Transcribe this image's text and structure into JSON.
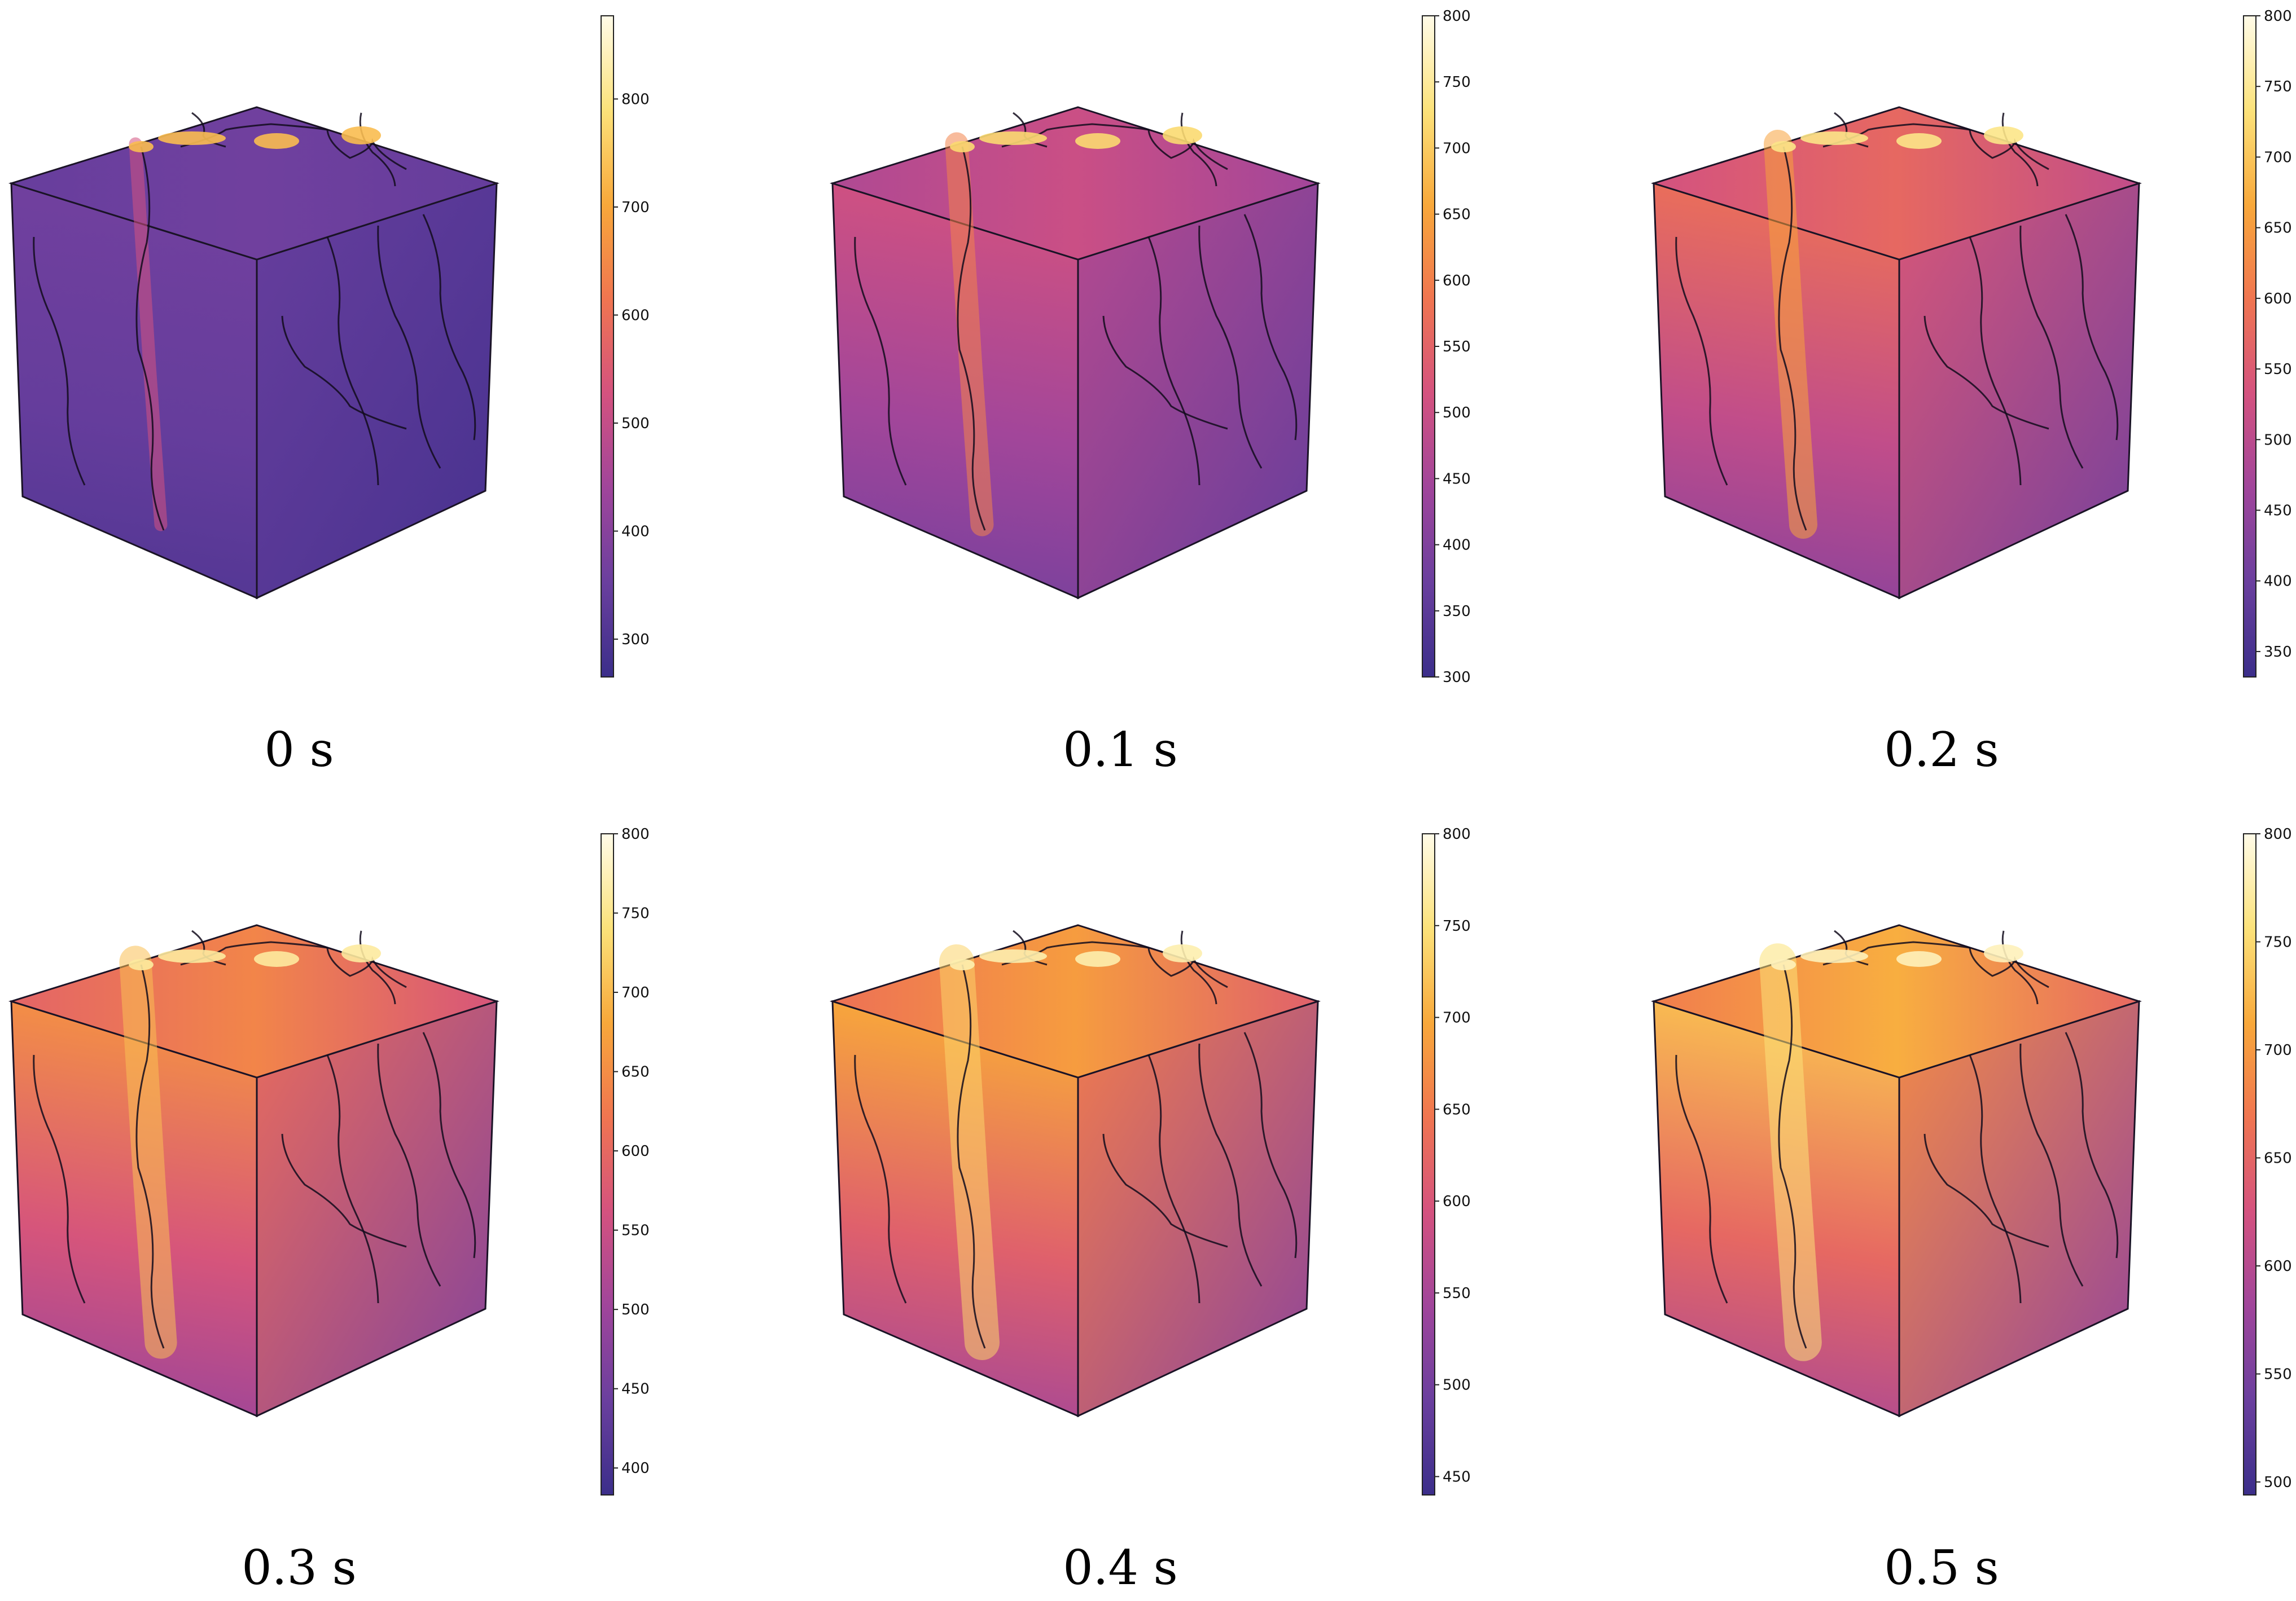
{
  "panels": [
    {
      "time_label": "0 s",
      "colorbar_ticks": [
        300,
        400,
        500,
        600,
        700,
        800
      ],
      "colorbar_range": [
        265,
        877
      ],
      "intensity": 0.05
    },
    {
      "time_label": "0.1 s",
      "colorbar_ticks": [
        300,
        350,
        400,
        450,
        500,
        550,
        600,
        650,
        700,
        750,
        800
      ],
      "colorbar_range": [
        300,
        800
      ],
      "intensity": 0.35
    },
    {
      "time_label": "0.2 s",
      "colorbar_ticks": [
        350,
        400,
        450,
        500,
        550,
        600,
        650,
        700,
        750,
        800
      ],
      "colorbar_range": [
        332,
        800
      ],
      "intensity": 0.5
    },
    {
      "time_label": "0.3 s",
      "colorbar_ticks": [
        400,
        450,
        500,
        550,
        600,
        650,
        700,
        750,
        800
      ],
      "colorbar_range": [
        383,
        800
      ],
      "intensity": 0.62
    },
    {
      "time_label": "0.4 s",
      "colorbar_ticks": [
        450,
        500,
        550,
        600,
        650,
        700,
        750,
        800
      ],
      "colorbar_range": [
        440,
        800
      ],
      "intensity": 0.7
    },
    {
      "time_label": "0.5 s",
      "colorbar_ticks": [
        500,
        550,
        600,
        650,
        700,
        750,
        800
      ],
      "colorbar_range": [
        494,
        800
      ],
      "intensity": 0.76
    }
  ],
  "colormap": [
    "#3b2e8a",
    "#6a3f9e",
    "#a0459b",
    "#d4527f",
    "#f07550",
    "#f8a83a",
    "#fce27a",
    "#fffbe8"
  ]
}
